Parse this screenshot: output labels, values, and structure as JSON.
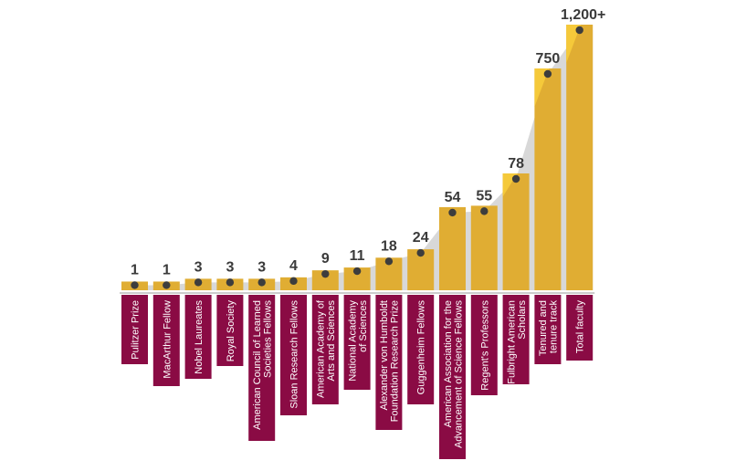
{
  "chart_data": {
    "type": "bar",
    "title": "",
    "xlabel": "",
    "ylabel": "",
    "grid": false,
    "legend": "none",
    "colors": {
      "bar": "#e0ad33",
      "bar_highlight": "#f5c93a",
      "label_box": "#8a0b44",
      "area": "#d8d8d8",
      "dot": "#3d3d3d",
      "value_text": "#3a3a3a"
    },
    "categories": [
      [
        "Pulitzer Prize"
      ],
      [
        "MacArthur Fellow"
      ],
      [
        "Nobel Laureates"
      ],
      [
        "Royal Society"
      ],
      [
        "American Council of Learned",
        "Societies Fellows"
      ],
      [
        "Sloan Research Fellows"
      ],
      [
        "American Academy of",
        "Arts and Sciences"
      ],
      [
        "National Academy",
        "of Sciences"
      ],
      [
        "Alexander von Humboldt",
        "Foundation Research Prize"
      ],
      [
        "Guggenheim Fellows"
      ],
      [
        "American Association for the",
        "Advancement of Science Fellows"
      ],
      [
        "Regent's Professors"
      ],
      [
        "Fulbright American",
        "Scholars"
      ],
      [
        "Tenured and",
        "tenure track"
      ],
      [
        "Total faculty"
      ]
    ],
    "values": [
      1,
      1,
      3,
      3,
      3,
      4,
      9,
      11,
      18,
      24,
      54,
      55,
      78,
      750,
      1200
    ],
    "value_labels": [
      "1",
      "1",
      "3",
      "3",
      "3",
      "4",
      "9",
      "11",
      "18",
      "24",
      "54",
      "55",
      "78",
      "750",
      "1,200+"
    ]
  }
}
